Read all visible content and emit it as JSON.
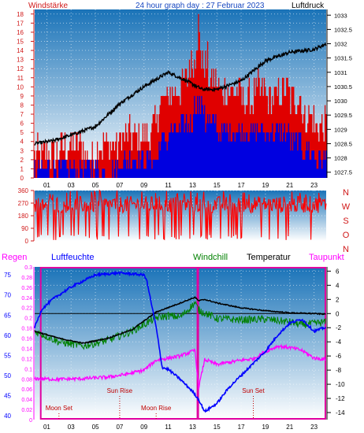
{
  "header": {
    "left": "Windstärke",
    "center": "24 hour graph day : 27 Februar 2023",
    "right": "Luftdruck"
  },
  "colors": {
    "wind_axis": "#d01818",
    "pressure": "#000000",
    "gust": "#e00000",
    "wind": "#0000e0",
    "direction": "#ff0000",
    "humidity": "#0000ff",
    "rain": "#ff00ff",
    "windchill": "#008000",
    "temperature": "#000000",
    "dewpoint": "#ff00ff",
    "daylight_box": "#e000a0",
    "event_text": "#c00000",
    "sky_top": "#1a73b8",
    "sky_bottom": "#ffffff"
  },
  "hour_ticks": [
    "01",
    "03",
    "05",
    "07",
    "09",
    "11",
    "13",
    "15",
    "17",
    "19",
    "21",
    "23"
  ],
  "chart_data": [
    {
      "type": "line",
      "id": "wind_pressure",
      "x_range": [
        0,
        24
      ],
      "left_axis": {
        "label": "Windstärke",
        "ticks": [
          0,
          1,
          2,
          3,
          4,
          5,
          6,
          7,
          8,
          9,
          10,
          11,
          12,
          13,
          14,
          15,
          16,
          17,
          18
        ],
        "ylim": [
          0,
          18.5
        ]
      },
      "right_axis": {
        "label": "Luftdruck",
        "ticks": [
          "1027.5",
          "1028",
          "1028.5",
          "1029",
          "1029.5",
          "1030",
          "1030.5",
          "1031",
          "1031.5",
          "1032",
          "1032.5",
          "1033"
        ],
        "ylim": [
          1027.3,
          1033.2
        ]
      },
      "pressure_knots": [
        [
          0,
          1028.5
        ],
        [
          1.5,
          1028.6
        ],
        [
          3,
          1028.8
        ],
        [
          5,
          1029.1
        ],
        [
          7,
          1029.9
        ],
        [
          9,
          1030.5
        ],
        [
          11,
          1031.0
        ],
        [
          12.5,
          1030.7
        ],
        [
          13.8,
          1030.4
        ],
        [
          15,
          1030.4
        ],
        [
          17,
          1030.7
        ],
        [
          19,
          1031.4
        ],
        [
          21,
          1031.7
        ],
        [
          23,
          1031.8
        ],
        [
          24,
          1032.0
        ]
      ],
      "gust_segments": [
        [
          0,
          2,
          2
        ],
        [
          2,
          4,
          3
        ],
        [
          4,
          5,
          2
        ],
        [
          5,
          7,
          3
        ],
        [
          7,
          9.5,
          4
        ],
        [
          9.5,
          10.2,
          5
        ],
        [
          10.2,
          11,
          8
        ],
        [
          11,
          12,
          9
        ],
        [
          12,
          12.7,
          10
        ],
        [
          12.7,
          13.3,
          12
        ],
        [
          13.3,
          13.7,
          15
        ],
        [
          13.7,
          14.3,
          12
        ],
        [
          14.3,
          15,
          10
        ],
        [
          15,
          16,
          9
        ],
        [
          16,
          17,
          9
        ],
        [
          17,
          18,
          8
        ],
        [
          18,
          19,
          9
        ],
        [
          19,
          20,
          8
        ],
        [
          20,
          21,
          9
        ],
        [
          21,
          22,
          8
        ],
        [
          22,
          23,
          6
        ],
        [
          23,
          24,
          5
        ]
      ],
      "wind_segments": [
        [
          0,
          3,
          1
        ],
        [
          3,
          5,
          1
        ],
        [
          5,
          7,
          1
        ],
        [
          7,
          9.5,
          2
        ],
        [
          9.5,
          10.2,
          2
        ],
        [
          10.2,
          11,
          4
        ],
        [
          11,
          12,
          5
        ],
        [
          12,
          13,
          6
        ],
        [
          13,
          14,
          8
        ],
        [
          14,
          15,
          6
        ],
        [
          15,
          17,
          5
        ],
        [
          17,
          19,
          5
        ],
        [
          19,
          21,
          5
        ],
        [
          21,
          22,
          4
        ],
        [
          22,
          23,
          3
        ],
        [
          23,
          24,
          2
        ]
      ]
    },
    {
      "type": "line",
      "id": "wind_direction",
      "x_range": [
        0,
        24
      ],
      "left_axis": {
        "ticks": [
          0,
          90,
          180,
          270,
          360
        ],
        "ylim": [
          0,
          360
        ]
      },
      "right_axis": {
        "labels": [
          "N",
          "W",
          "S",
          "O",
          "N"
        ]
      }
    },
    {
      "type": "line",
      "id": "temperature_humidity",
      "x_range": [
        0,
        24
      ],
      "legend": {
        "rain": "Regen",
        "humidity": "Luftfeuchte",
        "windchill": "Windchill",
        "temperature": "Temperatur",
        "dewpoint": "Taupunkt"
      },
      "humidity_axis": {
        "ticks": [
          40,
          45,
          50,
          55,
          60,
          65,
          70,
          75
        ],
        "ylim": [
          39,
          77
        ]
      },
      "rain_axis": {
        "ticks": [
          "0",
          "0.02",
          "0.04",
          "0.06",
          "0.08",
          "0.1",
          "0.12",
          "0.14",
          "0.16",
          "0.18",
          "0.2",
          "0.22",
          "0.24",
          "0.26",
          "0.28",
          "0.3"
        ],
        "ylim": [
          0,
          0.3
        ]
      },
      "temp_axis": {
        "ticks": [
          6,
          4,
          2,
          0,
          -2,
          -4,
          -6,
          -8,
          -10,
          -12,
          -14
        ],
        "ylim": [
          -15,
          6.6
        ]
      },
      "temperature": [
        [
          0,
          -2.5
        ],
        [
          2,
          -3.5
        ],
        [
          4,
          -4.2
        ],
        [
          6,
          -3.5
        ],
        [
          8,
          -2.3
        ],
        [
          10,
          0.2
        ],
        [
          12,
          1.5
        ],
        [
          13.2,
          2.3
        ],
        [
          13.5,
          1.8
        ],
        [
          14,
          2.0
        ],
        [
          15,
          1.5
        ],
        [
          17,
          0.8
        ],
        [
          19,
          0.4
        ],
        [
          21,
          0.1
        ],
        [
          23,
          0
        ],
        [
          24,
          -0.1
        ]
      ],
      "windchill": [
        [
          0,
          -2.5
        ],
        [
          2,
          -4.0
        ],
        [
          4,
          -4.6
        ],
        [
          6,
          -3.8
        ],
        [
          8,
          -2.5
        ],
        [
          10,
          -0.6
        ],
        [
          11,
          -0.3
        ],
        [
          12,
          -0.5
        ],
        [
          13.2,
          1.5
        ],
        [
          13.5,
          0.5
        ],
        [
          15,
          -0.7
        ],
        [
          17,
          -0.9
        ],
        [
          19,
          -0.8
        ],
        [
          21,
          -1.2
        ],
        [
          22,
          -1.6
        ],
        [
          23,
          -1.4
        ],
        [
          24,
          -1.2
        ]
      ],
      "dewpoint": [
        [
          0,
          -9.2
        ],
        [
          2,
          -9.3
        ],
        [
          4,
          -9.2
        ],
        [
          6,
          -9.0
        ],
        [
          7.5,
          -8.6
        ],
        [
          9,
          -8.0
        ],
        [
          10,
          -6.6
        ],
        [
          11,
          -6.3
        ],
        [
          12,
          -6.0
        ],
        [
          13.2,
          -5.2
        ],
        [
          13.5,
          -10.5
        ],
        [
          14,
          -6.5
        ],
        [
          15,
          -7.2
        ],
        [
          17,
          -6.6
        ],
        [
          18,
          -6.4
        ],
        [
          19,
          -5.4
        ],
        [
          20,
          -4.6
        ],
        [
          21,
          -4.8
        ],
        [
          22,
          -5.2
        ],
        [
          23,
          -6.3
        ],
        [
          24,
          -6.5
        ]
      ],
      "humidity": [
        [
          0,
          62
        ],
        [
          0.6,
          66.5
        ],
        [
          1.5,
          69
        ],
        [
          3,
          72
        ],
        [
          5,
          75
        ],
        [
          7,
          75.5
        ],
        [
          9,
          75
        ],
        [
          9.2,
          74
        ],
        [
          10,
          62
        ],
        [
          10.5,
          52
        ],
        [
          11,
          51.5
        ],
        [
          12,
          49
        ],
        [
          13,
          46
        ],
        [
          13.5,
          44
        ],
        [
          14,
          41
        ],
        [
          15,
          43
        ],
        [
          16,
          47
        ],
        [
          17,
          50
        ],
        [
          18,
          53
        ],
        [
          19,
          56
        ],
        [
          20,
          60
        ],
        [
          21,
          63
        ],
        [
          22,
          64
        ],
        [
          23,
          61
        ],
        [
          24,
          62
        ]
      ],
      "daylight_box": [
        0.5,
        13.4
      ],
      "events": [
        {
          "label": "Moon Set",
          "hour": 2
        },
        {
          "label": "Sun Rise",
          "hour": 7
        },
        {
          "label": "Moon Rise",
          "hour": 10
        },
        {
          "label": "Sun Set",
          "hour": 18
        }
      ]
    }
  ]
}
